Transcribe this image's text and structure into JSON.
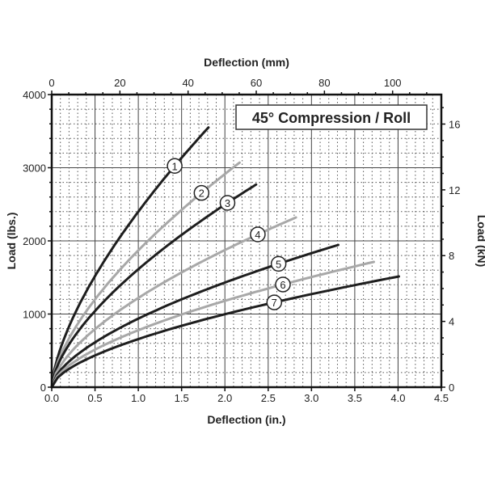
{
  "chart_data": {
    "type": "line",
    "title": "45° Compression / Roll",
    "xlabel": "Deflection (in.)",
    "x2label": "Deflection (mm)",
    "ylabel": "Load (lbs.)",
    "y2label": "Load (kN)",
    "xlim": [
      0,
      4.5
    ],
    "ylim": [
      0,
      4000
    ],
    "x2lim_mm": [
      0,
      114.3
    ],
    "y2lim_kN": [
      0,
      17.79
    ],
    "xticks": [
      "0.0",
      "0.5",
      "1.0",
      "1.5",
      "2.0",
      "2.5",
      "3.0",
      "3.5",
      "4.0",
      "4.5"
    ],
    "yticks": [
      "0",
      "1000",
      "2000",
      "3000",
      "4000"
    ],
    "x2ticks": [
      "0",
      "20",
      "40",
      "60",
      "80",
      "100"
    ],
    "y2ticks": [
      "0",
      "4",
      "8",
      "12",
      "16"
    ],
    "grid": true,
    "series": [
      {
        "name": "1",
        "end_x": 1.81,
        "end_y": 3550,
        "exponent": 0.66,
        "label_x": 1.42,
        "color": "#1e1e1e"
      },
      {
        "name": "2",
        "end_x": 2.17,
        "end_y": 3070,
        "exponent": 0.64,
        "label_x": 1.73,
        "color": "#a8a8a8"
      },
      {
        "name": "3",
        "end_x": 2.36,
        "end_y": 2770,
        "exponent": 0.63,
        "label_x": 2.03,
        "color": "#1e1e1e"
      },
      {
        "name": "4",
        "end_x": 2.82,
        "end_y": 2320,
        "exponent": 0.62,
        "label_x": 2.38,
        "color": "#a8a8a8"
      },
      {
        "name": "5",
        "end_x": 3.31,
        "end_y": 1945,
        "exponent": 0.61,
        "label_x": 2.62,
        "color": "#1e1e1e"
      },
      {
        "name": "6",
        "end_x": 3.72,
        "end_y": 1713,
        "exponent": 0.6,
        "label_x": 2.67,
        "color": "#a8a8a8"
      },
      {
        "name": "7",
        "end_x": 4.01,
        "end_y": 1514,
        "exponent": 0.6,
        "label_x": 2.57,
        "color": "#1e1e1e"
      }
    ]
  }
}
